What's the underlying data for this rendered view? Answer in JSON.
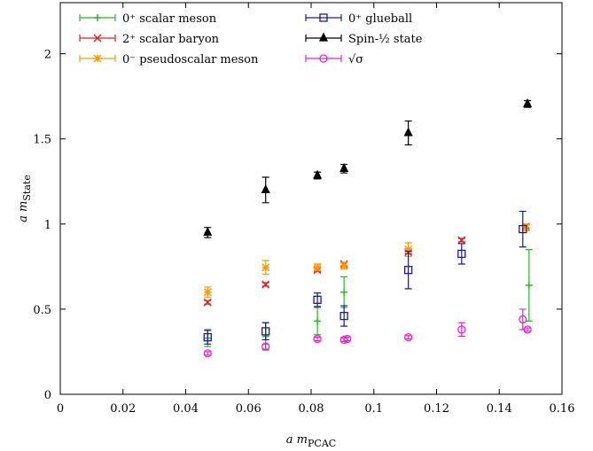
{
  "chart_data": {
    "type": "scatter",
    "title": "",
    "xlabel": "a m_PCAC",
    "xlabel_main": "a m",
    "xlabel_sub": "PCAC",
    "ylabel": "a m_State",
    "ylabel_main": "a m",
    "ylabel_sub": "State",
    "xlim": [
      0,
      0.16
    ],
    "ylim": [
      0,
      2.3
    ],
    "x_ticks": [
      0,
      0.02,
      0.04,
      0.06,
      0.08,
      0.1,
      0.12,
      0.14,
      0.16
    ],
    "x_tick_labels": [
      "0",
      "0.02",
      "0.04",
      "0.06",
      "0.08",
      "0.1",
      "0.12",
      "0.14",
      "0.16"
    ],
    "y_ticks": [
      0,
      0.5,
      1,
      1.5,
      2
    ],
    "y_tick_labels": [
      "0",
      "0.5",
      "1",
      "1.5",
      "2"
    ],
    "grid": false,
    "legend_position": "top",
    "series": [
      {
        "name": "0⁺ scalar meson",
        "color": "#22bb22",
        "marker": "plus",
        "points": [
          {
            "x": 0.047,
            "y": 0.33,
            "err": 0.05
          },
          {
            "x": 0.0655,
            "y": 0.34,
            "err": 0.08
          },
          {
            "x": 0.082,
            "y": 0.43,
            "err": 0.08
          },
          {
            "x": 0.0905,
            "y": 0.6,
            "err": 0.09
          },
          {
            "x": 0.1495,
            "y": 0.64,
            "err": 0.21
          }
        ]
      },
      {
        "name": "2⁺ scalar baryon",
        "color": "#dd2222",
        "marker": "cross",
        "points": [
          {
            "x": 0.047,
            "y": 0.54,
            "err": 0.01
          },
          {
            "x": 0.0655,
            "y": 0.645,
            "err": 0.01
          },
          {
            "x": 0.082,
            "y": 0.73,
            "err": 0.01
          },
          {
            "x": 0.0905,
            "y": 0.765,
            "err": 0.01
          },
          {
            "x": 0.111,
            "y": 0.835,
            "err": 0.01
          },
          {
            "x": 0.128,
            "y": 0.905,
            "err": 0.01
          },
          {
            "x": 0.1485,
            "y": 0.985,
            "err": 0.01
          }
        ]
      },
      {
        "name": "0⁻ pseudoscalar meson",
        "color": "#ff9900",
        "marker": "star",
        "points": [
          {
            "x": 0.047,
            "y": 0.6,
            "err": 0.03
          },
          {
            "x": 0.0655,
            "y": 0.745,
            "err": 0.04
          },
          {
            "x": 0.082,
            "y": 0.745,
            "err": 0.02
          },
          {
            "x": 0.0905,
            "y": 0.755,
            "err": 0.02
          },
          {
            "x": 0.111,
            "y": 0.85,
            "err": 0.04
          },
          {
            "x": 0.1485,
            "y": 0.98,
            "err": 0.02
          }
        ]
      },
      {
        "name": "0⁺ glueball",
        "color": "#1a1a99",
        "marker": "square",
        "points": [
          {
            "x": 0.047,
            "y": 0.335,
            "err": 0.04
          },
          {
            "x": 0.0655,
            "y": 0.37,
            "err": 0.05
          },
          {
            "x": 0.082,
            "y": 0.555,
            "err": 0.04
          },
          {
            "x": 0.0905,
            "y": 0.46,
            "err": 0.06
          },
          {
            "x": 0.111,
            "y": 0.73,
            "err": 0.11
          },
          {
            "x": 0.128,
            "y": 0.825,
            "err": 0.06
          },
          {
            "x": 0.1475,
            "y": 0.97,
            "err": 0.105
          }
        ]
      },
      {
        "name": "Spin-½ state",
        "color": "#000000",
        "marker": "triangle",
        "points": [
          {
            "x": 0.047,
            "y": 0.95,
            "err": 0.03
          },
          {
            "x": 0.0655,
            "y": 1.2,
            "err": 0.075
          },
          {
            "x": 0.082,
            "y": 1.285,
            "err": 0.02
          },
          {
            "x": 0.0905,
            "y": 1.325,
            "err": 0.025
          },
          {
            "x": 0.111,
            "y": 1.535,
            "err": 0.07
          },
          {
            "x": 0.149,
            "y": 1.705,
            "err": 0.02
          }
        ]
      },
      {
        "name": "√σ",
        "color": "#ee22cc",
        "marker": "circle",
        "points": [
          {
            "x": 0.047,
            "y": 0.24,
            "err": 0.01
          },
          {
            "x": 0.0655,
            "y": 0.28,
            "err": 0.015
          },
          {
            "x": 0.082,
            "y": 0.325,
            "err": 0.01
          },
          {
            "x": 0.0905,
            "y": 0.32,
            "err": 0.01
          },
          {
            "x": 0.0915,
            "y": 0.325,
            "err": 0.01
          },
          {
            "x": 0.111,
            "y": 0.335,
            "err": 0.01
          },
          {
            "x": 0.128,
            "y": 0.38,
            "err": 0.04
          },
          {
            "x": 0.1475,
            "y": 0.44,
            "err": 0.06
          },
          {
            "x": 0.149,
            "y": 0.38,
            "err": 0.01
          }
        ]
      }
    ]
  }
}
